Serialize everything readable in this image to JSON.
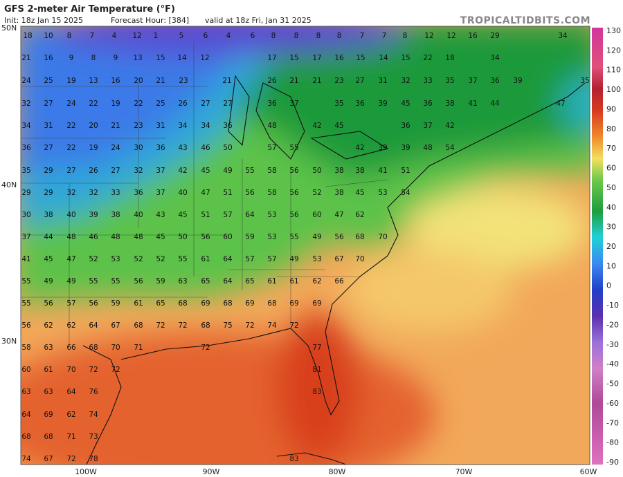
{
  "header": {
    "title": "GFS 2-meter Air Temperature (°F)",
    "init": "Init: 18z Jan 15 2025",
    "forecast_hour": "Forecast Hour: [384]",
    "valid": "valid at 18z Fri, Jan 31 2025",
    "credit": "TROPICALTIDBITS.COM"
  },
  "lat_labels": [
    "50N",
    "40N",
    "30N"
  ],
  "lon_labels": [
    "100W",
    "90W",
    "80W",
    "70W",
    "60W"
  ],
  "colorbar": {
    "labels": [
      130,
      120,
      110,
      100,
      90,
      80,
      70,
      60,
      50,
      40,
      30,
      20,
      10,
      0,
      -10,
      -20,
      -30,
      -40,
      -50,
      -60,
      -70,
      -80,
      -90
    ]
  },
  "stations": [
    [
      18,
      10,
      8,
      7,
      4,
      12,
      1,
      5,
      6,
      4,
      6,
      8,
      8,
      8,
      8,
      7,
      7,
      8,
      12,
      12,
      16,
      29,
      34
    ],
    [
      21,
      16,
      9,
      8,
      9,
      13,
      15,
      14,
      12,
      17,
      15,
      17,
      16,
      15,
      14,
      15,
      22,
      18,
      34
    ],
    [
      24,
      25,
      19,
      13,
      16,
      20,
      21,
      23,
      21,
      26,
      21,
      21,
      23,
      27,
      31,
      32,
      33,
      35,
      37,
      36,
      39,
      35
    ],
    [
      32,
      27,
      24,
      22,
      19,
      22,
      25,
      26,
      27,
      27,
      36,
      37,
      35,
      36,
      39,
      45,
      36,
      38,
      41,
      44,
      47
    ],
    [
      34,
      31,
      22,
      20,
      21,
      23,
      31,
      34,
      34,
      36,
      48,
      42,
      45,
      36,
      37,
      42
    ],
    [
      36,
      27,
      22,
      19,
      24,
      30,
      36,
      43,
      46,
      50,
      57,
      55,
      42,
      39,
      39,
      48,
      54
    ],
    [
      35,
      29,
      27,
      26,
      27,
      32,
      37,
      42,
      45,
      49,
      55,
      58,
      56,
      50,
      38,
      38,
      41,
      51
    ],
    [
      29,
      29,
      32,
      32,
      33,
      36,
      37,
      40,
      47,
      51,
      56,
      58,
      56,
      52,
      38,
      45,
      53,
      54
    ],
    [
      30,
      38,
      40,
      39,
      38,
      40,
      43,
      45,
      51,
      57,
      64,
      53,
      56,
      60,
      47,
      62
    ],
    [
      37,
      44,
      48,
      46,
      48,
      48,
      45,
      50,
      56,
      60,
      59,
      53,
      55,
      49,
      56,
      68,
      70
    ],
    [
      41,
      45,
      47,
      52,
      53,
      52,
      52,
      55,
      61,
      64,
      57,
      57,
      49,
      53,
      67,
      70
    ],
    [
      55,
      49,
      49,
      55,
      55,
      56,
      59,
      63,
      65,
      64,
      65,
      61,
      61,
      62,
      66
    ],
    [
      55,
      56,
      57,
      56,
      59,
      61,
      65,
      68,
      69,
      68,
      69,
      68,
      69,
      69
    ],
    [
      56,
      62,
      62,
      64,
      67,
      68,
      72,
      72,
      68,
      75,
      72,
      74,
      72
    ],
    [
      58,
      63,
      66,
      68,
      70,
      71,
      72,
      77
    ],
    [
      60,
      61,
      70,
      72,
      72,
      81
    ],
    [
      63,
      63,
      64,
      76,
      83
    ],
    [
      64,
      69,
      62,
      74
    ],
    [
      68,
      68,
      71,
      73
    ],
    [
      74,
      67,
      72,
      78,
      83
    ]
  ]
}
